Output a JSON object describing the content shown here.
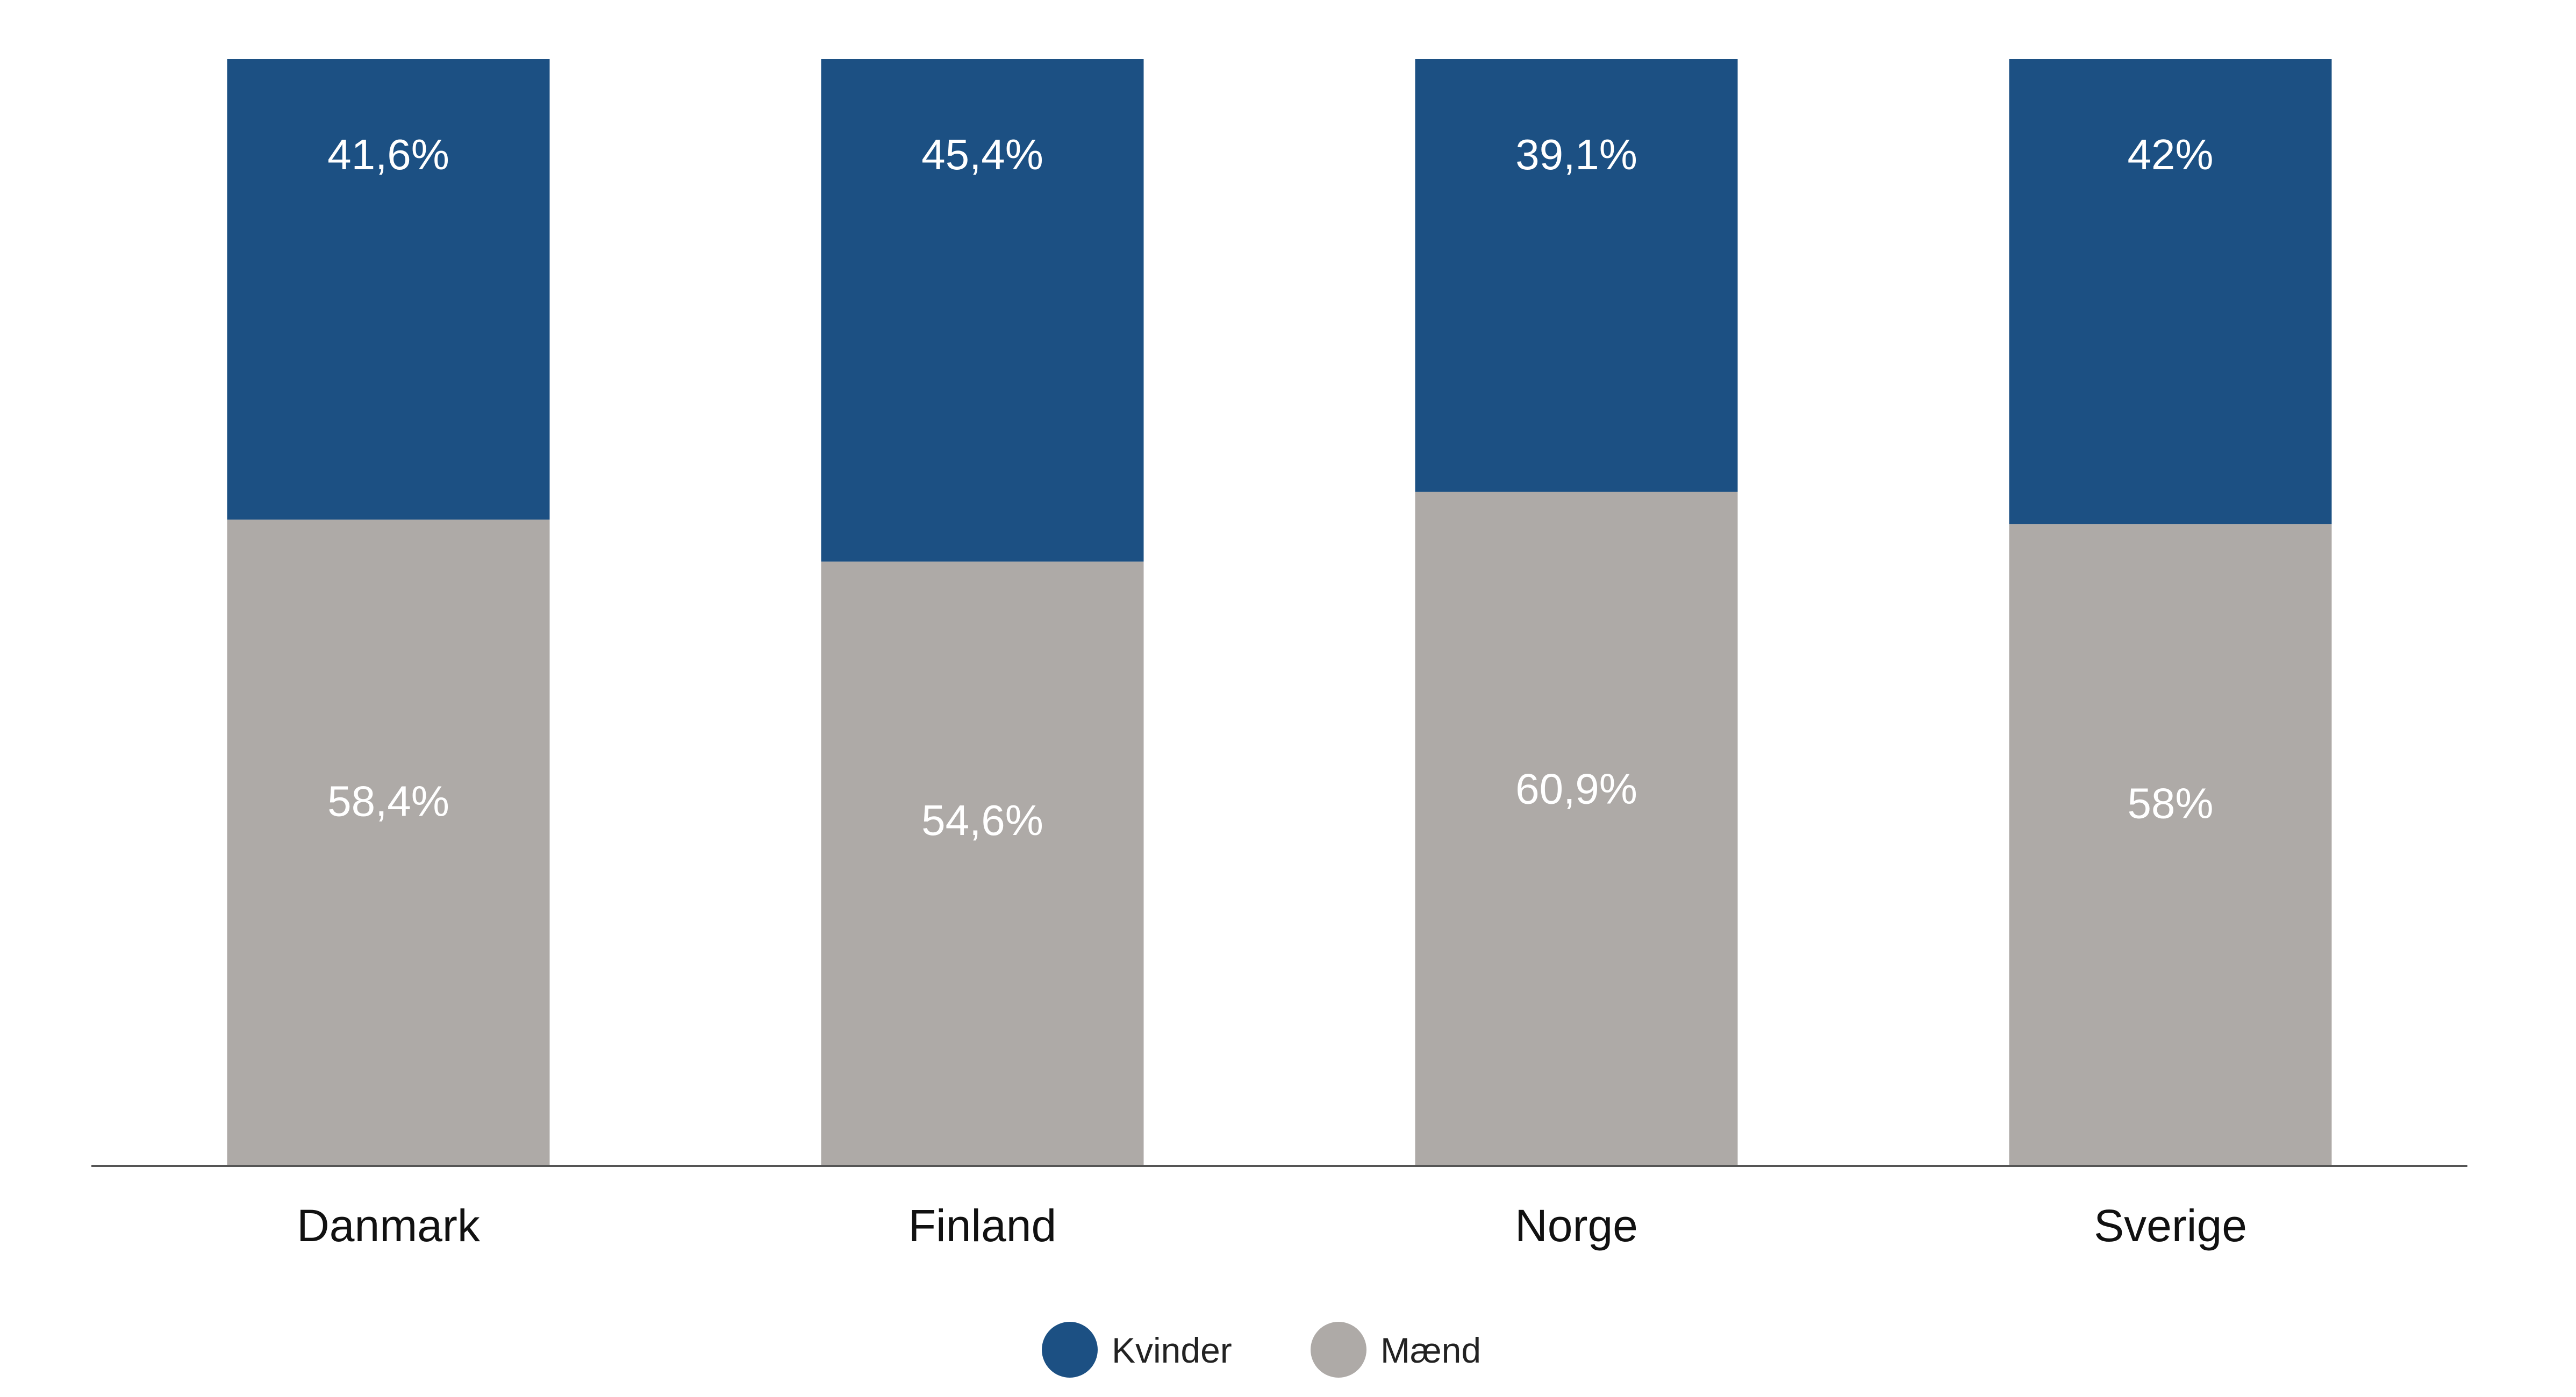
{
  "chart_data": {
    "type": "bar",
    "stacked": true,
    "categories": [
      "Danmark",
      "Finland",
      "Norge",
      "Sverige"
    ],
    "series": [
      {
        "name": "Mænd",
        "values": [
          58.4,
          54.6,
          60.9,
          58
        ],
        "labels": [
          "58,4%",
          "54,6%",
          "60,9%",
          "58%"
        ],
        "color": "#aeaaa7"
      },
      {
        "name": "Kvinder",
        "values": [
          41.6,
          45.4,
          39.1,
          42
        ],
        "labels": [
          "41,6%",
          "45,4%",
          "39,1%",
          "42%"
        ],
        "color": "#1c5083"
      }
    ],
    "legend_order": [
      "Kvinder",
      "Mænd"
    ],
    "legend_position": "bottom-center",
    "ylim": [
      0,
      100
    ],
    "grid": false
  }
}
